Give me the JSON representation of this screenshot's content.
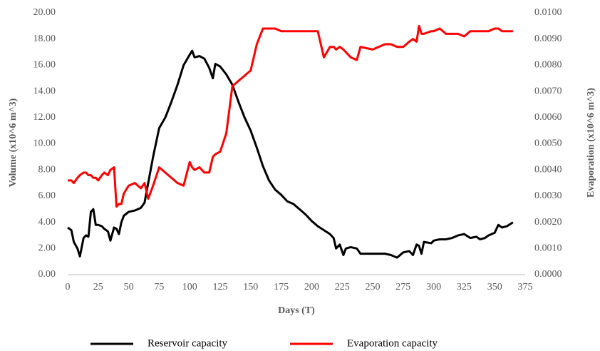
{
  "chart_data": {
    "type": "line",
    "xlabel": "Days (T)",
    "ylabel": "Volume (x10^6 m^3)",
    "y2label": "Evaporation (x10^6 m^3)",
    "x": [
      0,
      3,
      5,
      8,
      10,
      13,
      15,
      17,
      19,
      21,
      23,
      25,
      28,
      30,
      33,
      35,
      38,
      40,
      42,
      44,
      46,
      50,
      55,
      60,
      63,
      66,
      70,
      75,
      80,
      85,
      90,
      95,
      100,
      102,
      104,
      108,
      112,
      116,
      119,
      121,
      125,
      130,
      135,
      140,
      145,
      150,
      155,
      160,
      165,
      170,
      175,
      180,
      185,
      190,
      195,
      200,
      205,
      210,
      215,
      218,
      220,
      223,
      226,
      228,
      232,
      237,
      240,
      250,
      260,
      265,
      270,
      275,
      280,
      283,
      286,
      288,
      290,
      292,
      298,
      300,
      305,
      310,
      315,
      320,
      325,
      330,
      335,
      338,
      342,
      345,
      350,
      353,
      356,
      360,
      365
    ],
    "series": [
      {
        "name": "Reservoir capacity",
        "color": "#000000",
        "axis": "y",
        "values": [
          3.6,
          3.4,
          2.5,
          2.0,
          1.4,
          2.8,
          3.0,
          2.9,
          4.8,
          5.0,
          3.8,
          3.8,
          3.7,
          3.5,
          3.3,
          2.6,
          3.6,
          3.5,
          3.1,
          4.0,
          4.5,
          4.8,
          4.9,
          5.1,
          5.5,
          7.0,
          9.0,
          11.2,
          12.0,
          13.2,
          14.5,
          16.0,
          16.8,
          17.1,
          16.6,
          16.7,
          16.5,
          15.8,
          15.0,
          16.1,
          15.9,
          15.3,
          14.5,
          13.2,
          12.0,
          11.0,
          9.7,
          8.3,
          7.2,
          6.5,
          6.1,
          5.6,
          5.4,
          5.0,
          4.6,
          4.1,
          3.7,
          3.4,
          3.1,
          2.8,
          2.0,
          2.3,
          1.5,
          2.0,
          2.1,
          2.0,
          1.6,
          1.6,
          1.6,
          1.5,
          1.3,
          1.7,
          1.8,
          1.5,
          2.3,
          2.2,
          1.6,
          2.5,
          2.4,
          2.6,
          2.7,
          2.7,
          2.8,
          3.0,
          3.1,
          2.8,
          2.9,
          2.7,
          2.8,
          3.0,
          3.2,
          3.8,
          3.6,
          3.7,
          4.0
        ]
      },
      {
        "name": "Evaporation capacity",
        "color": "#ff0000",
        "axis": "y2",
        "values": [
          0.0036,
          0.0036,
          0.0035,
          0.0037,
          0.0038,
          0.0039,
          0.0039,
          0.0038,
          0.0038,
          0.0037,
          0.0037,
          0.0036,
          0.0038,
          0.0039,
          0.0038,
          0.004,
          0.0041,
          0.0026,
          0.0027,
          0.0027,
          0.0031,
          0.0034,
          0.0035,
          0.0033,
          0.0035,
          0.0029,
          0.0034,
          0.0041,
          0.0039,
          0.0037,
          0.0035,
          0.0034,
          0.0043,
          0.0041,
          0.004,
          0.0041,
          0.0039,
          0.0039,
          0.0045,
          0.0046,
          0.0047,
          0.0054,
          0.0072,
          0.0074,
          0.0076,
          0.0078,
          0.0088,
          0.0094,
          0.0094,
          0.0094,
          0.0093,
          0.0093,
          0.0093,
          0.0093,
          0.0093,
          0.0093,
          0.0093,
          0.0083,
          0.0087,
          0.0087,
          0.0086,
          0.0087,
          0.0086,
          0.0085,
          0.0083,
          0.0082,
          0.0087,
          0.0086,
          0.0088,
          0.0088,
          0.0087,
          0.0087,
          0.0089,
          0.009,
          0.0089,
          0.0095,
          0.0092,
          0.0092,
          0.0093,
          0.0093,
          0.0094,
          0.0092,
          0.0092,
          0.0092,
          0.0091,
          0.0093,
          0.0093,
          0.0093,
          0.0093,
          0.0093,
          0.0094,
          0.0094,
          0.0093,
          0.0093,
          0.0093
        ]
      }
    ],
    "xlim": [
      0,
      375
    ],
    "xticks": [
      0,
      25,
      50,
      75,
      100,
      125,
      150,
      175,
      200,
      225,
      250,
      275,
      300,
      325,
      350,
      375
    ],
    "ylim": [
      0,
      20
    ],
    "yticks": [
      {
        "value": 0,
        "label": "0.00"
      },
      {
        "value": 2,
        "label": "2.00"
      },
      {
        "value": 4,
        "label": "4.00"
      },
      {
        "value": 6,
        "label": "6.00"
      },
      {
        "value": 8,
        "label": "8.00"
      },
      {
        "value": 10,
        "label": "10.00"
      },
      {
        "value": 12,
        "label": "12.00"
      },
      {
        "value": 14,
        "label": "14.00"
      },
      {
        "value": 16,
        "label": "16.00"
      },
      {
        "value": 18,
        "label": "18.00"
      },
      {
        "value": 20,
        "label": "20.00"
      }
    ],
    "y2lim": [
      0,
      0.01
    ],
    "y2ticks": [
      {
        "value": 0,
        "label": "0.0000"
      },
      {
        "value": 0.001,
        "label": "0.0010"
      },
      {
        "value": 0.002,
        "label": "0.0020"
      },
      {
        "value": 0.003,
        "label": "0.0030"
      },
      {
        "value": 0.004,
        "label": "0.0040"
      },
      {
        "value": 0.005,
        "label": "0.0050"
      },
      {
        "value": 0.006,
        "label": "0.0060"
      },
      {
        "value": 0.007,
        "label": "0.0070"
      },
      {
        "value": 0.008,
        "label": "0.0080"
      },
      {
        "value": 0.009,
        "label": "0.0090"
      },
      {
        "value": 0.01,
        "label": "0.0100"
      }
    ],
    "grid": false,
    "legend": "bottom"
  }
}
